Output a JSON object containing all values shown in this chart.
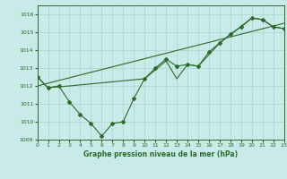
{
  "background_color": "#c8eae8",
  "grid_color": "#aad4d0",
  "line_color": "#2d6b2d",
  "title": "Graphe pression niveau de la mer (hPa)",
  "xlim": [
    0,
    23
  ],
  "ylim": [
    1009,
    1016.5
  ],
  "yticks": [
    1009,
    1010,
    1011,
    1012,
    1013,
    1014,
    1015,
    1016
  ],
  "xticks": [
    0,
    1,
    2,
    3,
    4,
    5,
    6,
    7,
    8,
    9,
    10,
    11,
    12,
    13,
    14,
    15,
    16,
    17,
    18,
    19,
    20,
    21,
    22,
    23
  ],
  "series1": {
    "x": [
      0,
      1,
      2,
      3,
      4,
      5,
      6,
      7,
      8,
      9,
      10,
      11,
      12,
      13,
      14,
      15,
      16,
      17,
      18,
      19,
      20,
      21,
      22,
      23
    ],
    "y": [
      1012.5,
      1011.9,
      1012.0,
      1011.1,
      1010.4,
      1009.9,
      1009.2,
      1009.9,
      1010.0,
      1011.3,
      1012.4,
      1013.0,
      1013.5,
      1013.1,
      1013.2,
      1013.1,
      1013.9,
      1014.4,
      1014.9,
      1015.3,
      1015.8,
      1015.7,
      1015.3,
      1015.2
    ]
  },
  "series2": {
    "x": [
      0,
      1,
      3,
      10,
      12,
      13,
      14,
      15,
      17,
      20,
      21,
      22,
      23
    ],
    "y": [
      1012.5,
      1011.9,
      1012.0,
      1012.4,
      1013.4,
      1012.4,
      1013.2,
      1013.1,
      1014.4,
      1015.8,
      1015.7,
      1015.3,
      1015.2
    ]
  },
  "trend_x": [
    0,
    23
  ],
  "trend_y": [
    1012.0,
    1015.5
  ]
}
